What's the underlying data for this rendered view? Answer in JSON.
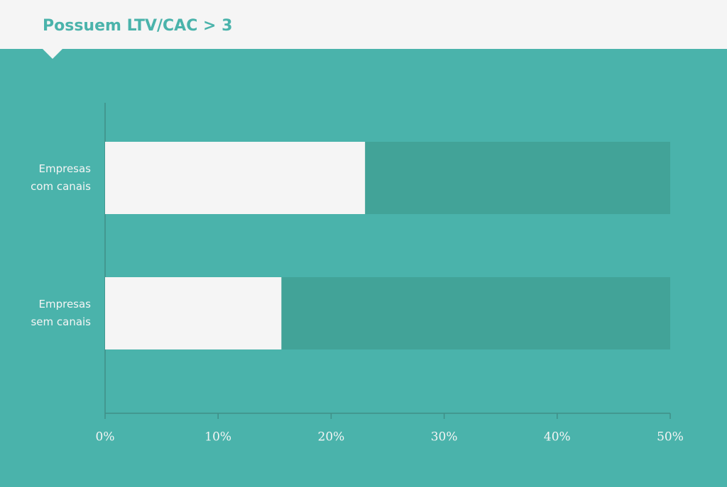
{
  "chart_data": {
    "type": "bar",
    "orientation": "horizontal",
    "title": "Possuem LTV/CAC > 3",
    "categories": [
      "Empresas com canais",
      "Empresas sem canais"
    ],
    "values": [
      23,
      15.6
    ],
    "color": "#f5f5f5",
    "xlim": [
      0,
      50
    ],
    "xticks": [
      {
        "value": 0,
        "label": "0%"
      },
      {
        "value": 10,
        "label": "10%"
      },
      {
        "value": 20,
        "label": "20%"
      },
      {
        "value": 30,
        "label": "30%"
      },
      {
        "value": 40,
        "label": "40%"
      },
      {
        "value": 50,
        "label": "50%"
      }
    ]
  }
}
